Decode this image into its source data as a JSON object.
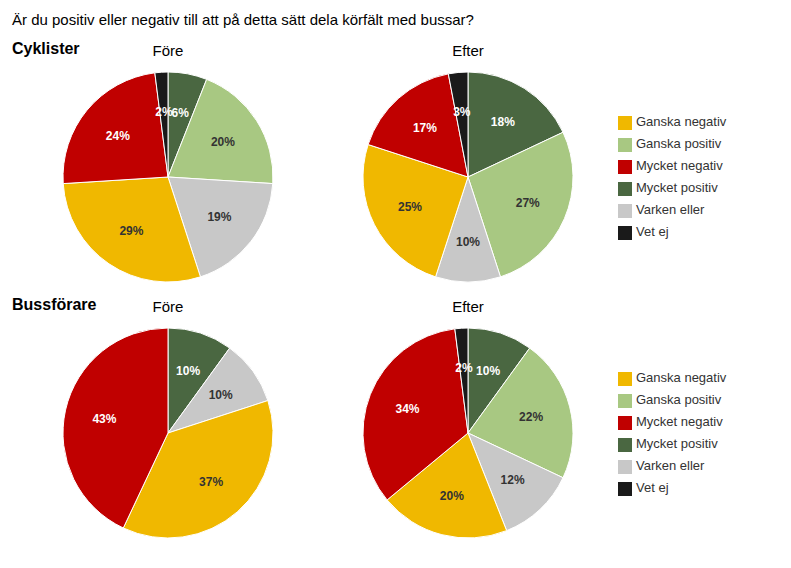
{
  "title": "Är du positiv eller negativ till att på detta sätt dela körfält med bussar?",
  "chart_data": [
    {
      "type": "pie",
      "title": "Före",
      "annotations": [
        "Cyklister"
      ],
      "categories": [
        "Mycket positiv",
        "Ganska positiv",
        "Varken eller",
        "Ganska negativ",
        "Mycket negativ",
        "Vet ej"
      ],
      "values": [
        6,
        20,
        19,
        29,
        24,
        2
      ],
      "value_labels": [
        "6%",
        "20%",
        "19%",
        "29%",
        "24%",
        "2%"
      ],
      "colors": [
        "#4a6741",
        "#a8c882",
        "#c8c8c8",
        "#f0b800",
        "#c00000",
        "#1a1a1a"
      ],
      "data_labels": true
    },
    {
      "type": "pie",
      "title": "Efter",
      "categories": [
        "Mycket positiv",
        "Ganska positiv",
        "Varken eller",
        "Ganska negativ",
        "Mycket negativ",
        "Vet ej"
      ],
      "values": [
        18,
        27,
        10,
        25,
        17,
        3
      ],
      "value_labels": [
        "18%",
        "27%",
        "10%",
        "25%",
        "17%",
        "3%"
      ],
      "colors": [
        "#4a6741",
        "#a8c882",
        "#c8c8c8",
        "#f0b800",
        "#c00000",
        "#1a1a1a"
      ],
      "data_labels": true,
      "legend": "right"
    },
    {
      "type": "pie",
      "title": "Före",
      "annotations": [
        "Bussförare"
      ],
      "categories": [
        "Mycket positiv",
        "Ganska positiv",
        "Varken eller",
        "Ganska negativ",
        "Mycket negativ",
        "Vet ej"
      ],
      "values": [
        10,
        0,
        10,
        37,
        43,
        0
      ],
      "value_labels": [
        "10%",
        null,
        "10%",
        "37%",
        "43%",
        null
      ],
      "colors": [
        "#4a6741",
        "#a8c882",
        "#c8c8c8",
        "#f0b800",
        "#c00000",
        "#1a1a1a"
      ],
      "data_labels": true
    },
    {
      "type": "pie",
      "title": "Efter",
      "categories": [
        "Mycket positiv",
        "Ganska positiv",
        "Varken eller",
        "Ganska negativ",
        "Mycket negativ",
        "Vet ej"
      ],
      "values": [
        10,
        22,
        12,
        20,
        34,
        2
      ],
      "value_labels": [
        "10%",
        "22%",
        "12%",
        "20%",
        "34%",
        "2%"
      ],
      "colors": [
        "#4a6741",
        "#a8c882",
        "#c8c8c8",
        "#f0b800",
        "#c00000",
        "#1a1a1a"
      ],
      "data_labels": true,
      "legend": "right"
    }
  ]
}
